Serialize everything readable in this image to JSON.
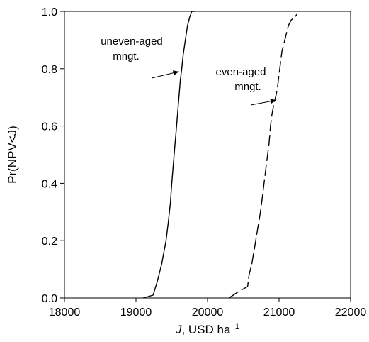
{
  "chart_data": {
    "type": "line",
    "title": "",
    "xlabel": {
      "italic_part": "J",
      "rest": ", USD ha",
      "superscript": "−1"
    },
    "ylabel": "Pr(NPV<J)",
    "xlim": [
      18000,
      22000
    ],
    "ylim": [
      0.0,
      1.0
    ],
    "xticks": [
      18000,
      19000,
      20000,
      21000,
      22000
    ],
    "xtick_labels": [
      "18000",
      "19000",
      "20000",
      "21000",
      "22000"
    ],
    "yticks": [
      0.0,
      0.2,
      0.4,
      0.6,
      0.8,
      1.0
    ],
    "ytick_labels": [
      "0.0",
      "0.2",
      "0.4",
      "0.6",
      "0.8",
      "1.0"
    ],
    "grid": false,
    "legend": "none",
    "series": [
      {
        "style": "solid",
        "color": "#000000",
        "x": [
          19100,
          19240,
          19300,
          19360,
          19420,
          19450,
          19480,
          19500,
          19520,
          19540,
          19560,
          19580,
          19600,
          19620,
          19640,
          19660,
          19690,
          19720,
          19750,
          19780,
          19820
        ],
        "y": [
          0.0,
          0.01,
          0.06,
          0.12,
          0.2,
          0.26,
          0.33,
          0.4,
          0.46,
          0.52,
          0.58,
          0.64,
          0.7,
          0.76,
          0.8,
          0.85,
          0.9,
          0.95,
          0.98,
          1.0,
          1.0
        ]
      },
      {
        "style": "dashed",
        "color": "#000000",
        "x": [
          20300,
          20420,
          20560,
          20580,
          20620,
          20660,
          20700,
          20740,
          20770,
          20800,
          20830,
          20860,
          20880,
          20900,
          20930,
          20960,
          20980,
          21000,
          21020,
          21040,
          21060,
          21080,
          21100,
          21130,
          21170,
          21220,
          21250
        ],
        "y": [
          0.0,
          0.02,
          0.04,
          0.08,
          0.12,
          0.18,
          0.24,
          0.3,
          0.36,
          0.42,
          0.48,
          0.54,
          0.6,
          0.64,
          0.68,
          0.71,
          0.74,
          0.78,
          0.82,
          0.86,
          0.88,
          0.9,
          0.92,
          0.95,
          0.97,
          0.98,
          0.99
        ]
      }
    ],
    "annotations": [
      {
        "lines": [
          "uneven-aged",
          "mngt."
        ],
        "x": 19600,
        "y": 0.79
      },
      {
        "lines": [
          "even-aged",
          "mngt."
        ],
        "x": 20960,
        "y": 0.69
      }
    ]
  }
}
